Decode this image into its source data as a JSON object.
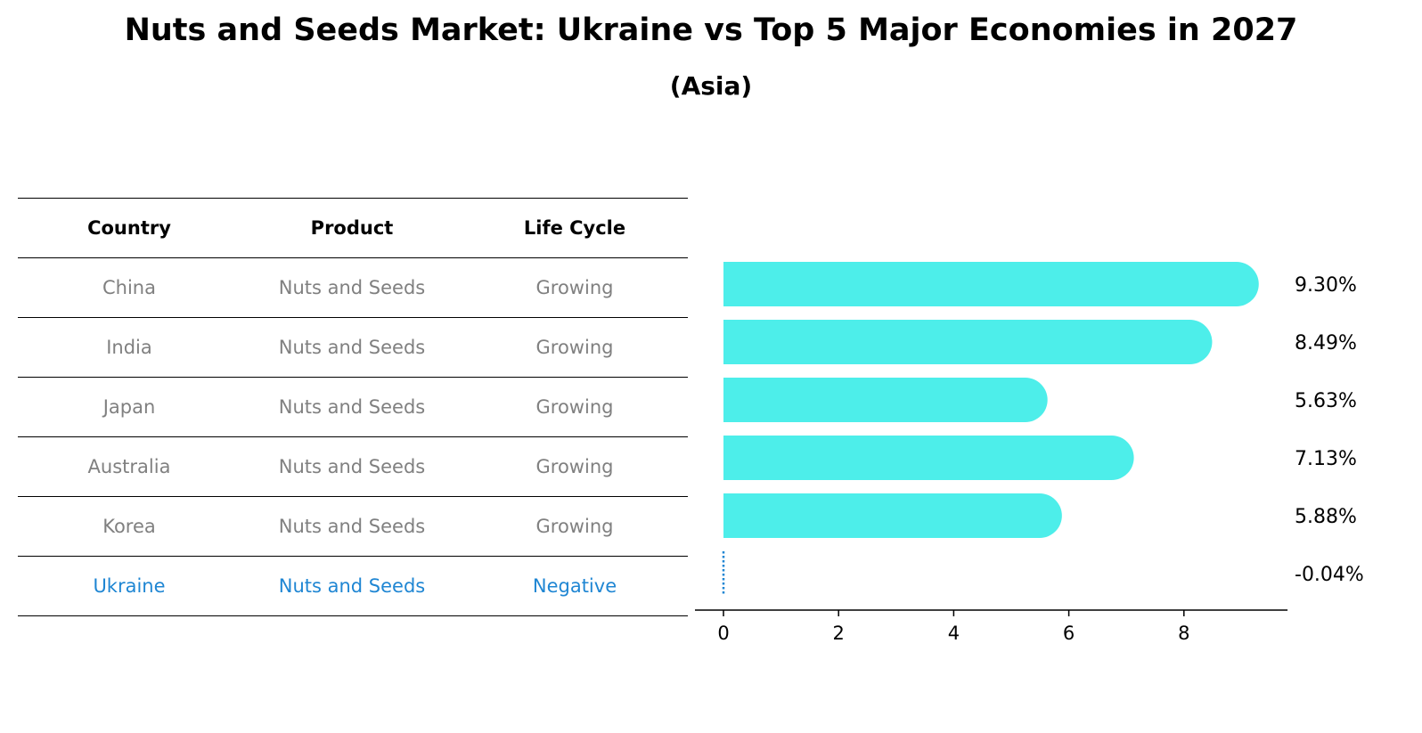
{
  "title": "Nuts and Seeds Market: Ukraine vs Top 5 Major Economies in 2027",
  "subtitle": "(Asia)",
  "table": {
    "headers": [
      "Country",
      "Product",
      "Life Cycle"
    ],
    "rows": [
      [
        "China",
        "Nuts and Seeds",
        "Growing"
      ],
      [
        "India",
        "Nuts and Seeds",
        "Growing"
      ],
      [
        "Japan",
        "Nuts and Seeds",
        "Growing"
      ],
      [
        "Australia",
        "Nuts and Seeds",
        "Growing"
      ],
      [
        "Korea",
        "Nuts and Seeds",
        "Growing"
      ],
      [
        "Ukraine",
        "Nuts and Seeds",
        "Negative"
      ]
    ]
  },
  "colors": {
    "bar": "#4deeea",
    "highlight": "#1f86d3",
    "muted": "#808080"
  },
  "chart_data": {
    "type": "bar",
    "orientation": "horizontal",
    "categories": [
      "China",
      "India",
      "Japan",
      "Australia",
      "Korea",
      "Ukraine"
    ],
    "values": [
      9.3,
      8.49,
      5.63,
      7.13,
      5.88,
      -0.04
    ],
    "value_labels": [
      "9.30%",
      "8.49%",
      "5.63%",
      "7.13%",
      "5.88%",
      "-0.04%"
    ],
    "xticks": [
      "0",
      "2",
      "4",
      "6",
      "8"
    ],
    "xlim": [
      -0.5,
      9.8
    ],
    "highlight": "Ukraine"
  }
}
